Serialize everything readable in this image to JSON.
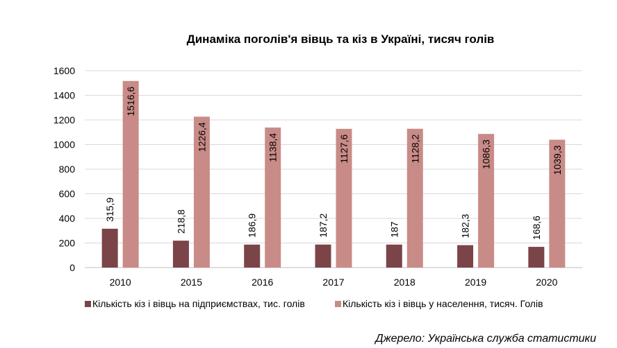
{
  "colors": {
    "series1": "#7b4449",
    "series2": "#c98b87",
    "grid": "#d9d9d9",
    "axis": "#bfbfbf",
    "text": "#000000"
  },
  "chart_data": {
    "type": "bar",
    "title": "Динаміка поголів'я вівць та кіз в Україні, тисяч голів",
    "xlabel": "",
    "ylabel": "",
    "ylim": [
      0,
      1600
    ],
    "yticks": [
      0,
      200,
      400,
      600,
      800,
      1000,
      1200,
      1400,
      1600
    ],
    "categories": [
      "2010",
      "2015",
      "2016",
      "2017",
      "2018",
      "2019",
      "2020"
    ],
    "series": [
      {
        "name": "Кількість кіз і вівць на підприємствах, тис. голів",
        "values": [
          315.9,
          218.8,
          186.9,
          187.2,
          187,
          182.3,
          168.6
        ],
        "labels": [
          "315,9",
          "218,8",
          "186,9",
          "187,2",
          "187",
          "182,3",
          "168,6"
        ]
      },
      {
        "name": "Кількість кіз і вівць у населення, тисяч. Голів",
        "values": [
          1516.6,
          1226.4,
          1138.4,
          1127.6,
          1128.2,
          1086.3,
          1039.3
        ],
        "labels": [
          "1516,6",
          "1226,4",
          "1138,4",
          "1127,6",
          "1128,2",
          "1086,3",
          "1039,3"
        ]
      }
    ],
    "grid": true,
    "legend": "bottom",
    "source": "Джерело: Українська служба статистики"
  }
}
